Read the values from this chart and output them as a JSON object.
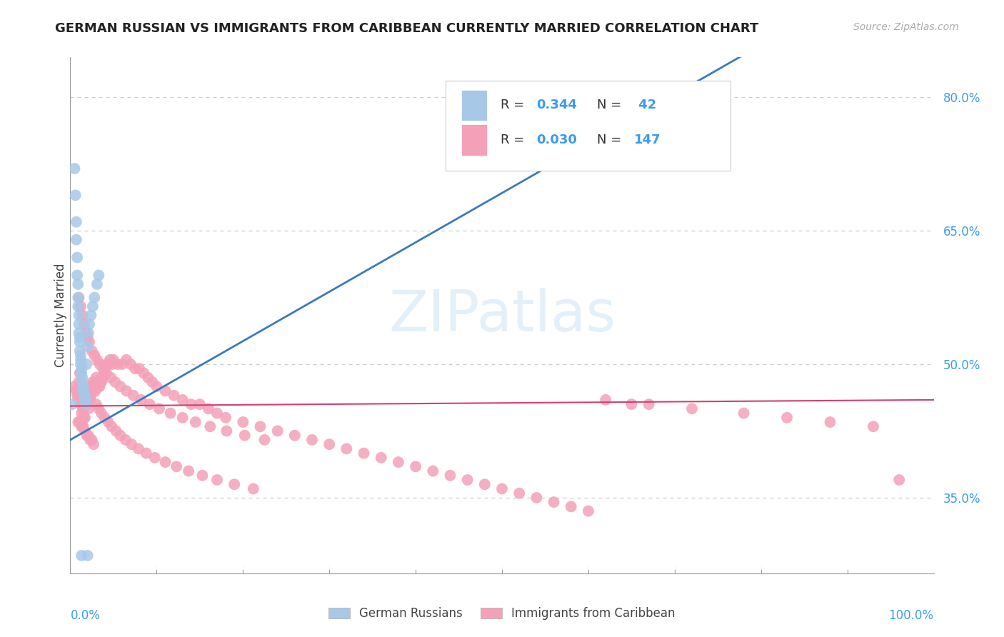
{
  "title": "GERMAN RUSSIAN VS IMMIGRANTS FROM CARIBBEAN CURRENTLY MARRIED CORRELATION CHART",
  "source": "Source: ZipAtlas.com",
  "ylabel": "Currently Married",
  "legend_blue_R": "0.344",
  "legend_blue_N": "42",
  "legend_pink_R": "0.030",
  "legend_pink_N": "147",
  "blue_color": "#a8c8e8",
  "pink_color": "#f4a0b8",
  "blue_line_color": "#3a7abf",
  "pink_line_color": "#d44070",
  "grid_color": "#cccccc",
  "ytick_values": [
    0.35,
    0.5,
    0.65,
    0.8
  ],
  "ytick_labels": [
    "35.0%",
    "50.0%",
    "65.0%",
    "80.0%"
  ],
  "ymin": 0.265,
  "ymax": 0.845,
  "xmin": 0.0,
  "xmax": 1.0,
  "blue_line_x": [
    0.0,
    1.0
  ],
  "blue_line_y": [
    0.415,
    0.97
  ],
  "pink_line_x": [
    0.0,
    1.0
  ],
  "pink_line_y": [
    0.453,
    0.46
  ],
  "blue_scatter_x": [
    0.005,
    0.006,
    0.007,
    0.007,
    0.008,
    0.008,
    0.009,
    0.009,
    0.009,
    0.01,
    0.01,
    0.01,
    0.011,
    0.011,
    0.011,
    0.012,
    0.012,
    0.012,
    0.013,
    0.013,
    0.014,
    0.014,
    0.015,
    0.015,
    0.016,
    0.016,
    0.017,
    0.017,
    0.018,
    0.018,
    0.019,
    0.02,
    0.021,
    0.022,
    0.024,
    0.026,
    0.028,
    0.031,
    0.033,
    0.002,
    0.013,
    0.02
  ],
  "blue_scatter_y": [
    0.72,
    0.69,
    0.66,
    0.64,
    0.62,
    0.6,
    0.59,
    0.575,
    0.565,
    0.555,
    0.545,
    0.535,
    0.53,
    0.525,
    0.515,
    0.51,
    0.505,
    0.5,
    0.495,
    0.49,
    0.485,
    0.48,
    0.475,
    0.47,
    0.47,
    0.465,
    0.465,
    0.46,
    0.46,
    0.455,
    0.5,
    0.52,
    0.535,
    0.545,
    0.555,
    0.565,
    0.575,
    0.59,
    0.6,
    0.455,
    0.285,
    0.285
  ],
  "pink_scatter_x": [
    0.005,
    0.007,
    0.008,
    0.009,
    0.01,
    0.011,
    0.012,
    0.013,
    0.014,
    0.015,
    0.015,
    0.016,
    0.017,
    0.018,
    0.019,
    0.02,
    0.021,
    0.022,
    0.023,
    0.024,
    0.025,
    0.026,
    0.027,
    0.028,
    0.029,
    0.03,
    0.031,
    0.032,
    0.033,
    0.034,
    0.035,
    0.036,
    0.037,
    0.038,
    0.039,
    0.04,
    0.042,
    0.044,
    0.046,
    0.048,
    0.05,
    0.055,
    0.06,
    0.065,
    0.07,
    0.075,
    0.08,
    0.085,
    0.09,
    0.095,
    0.1,
    0.11,
    0.12,
    0.13,
    0.14,
    0.15,
    0.16,
    0.17,
    0.18,
    0.2,
    0.22,
    0.24,
    0.26,
    0.28,
    0.3,
    0.32,
    0.34,
    0.36,
    0.38,
    0.4,
    0.42,
    0.44,
    0.46,
    0.48,
    0.5,
    0.52,
    0.54,
    0.56,
    0.58,
    0.6,
    0.009,
    0.011,
    0.013,
    0.015,
    0.017,
    0.019,
    0.021,
    0.023,
    0.025,
    0.027,
    0.03,
    0.033,
    0.036,
    0.04,
    0.044,
    0.048,
    0.053,
    0.058,
    0.064,
    0.071,
    0.079,
    0.088,
    0.098,
    0.11,
    0.123,
    0.137,
    0.153,
    0.17,
    0.19,
    0.212,
    0.01,
    0.012,
    0.014,
    0.016,
    0.018,
    0.02,
    0.022,
    0.025,
    0.028,
    0.031,
    0.034,
    0.038,
    0.042,
    0.047,
    0.052,
    0.058,
    0.065,
    0.073,
    0.082,
    0.092,
    0.103,
    0.116,
    0.13,
    0.145,
    0.162,
    0.181,
    0.202,
    0.225,
    0.67,
    0.72,
    0.78,
    0.83,
    0.88,
    0.93,
    0.62,
    0.65,
    0.96
  ],
  "pink_scatter_y": [
    0.475,
    0.47,
    0.465,
    0.46,
    0.48,
    0.49,
    0.455,
    0.445,
    0.43,
    0.45,
    0.475,
    0.44,
    0.44,
    0.46,
    0.455,
    0.46,
    0.45,
    0.47,
    0.46,
    0.465,
    0.475,
    0.48,
    0.47,
    0.475,
    0.47,
    0.485,
    0.475,
    0.48,
    0.475,
    0.475,
    0.48,
    0.48,
    0.485,
    0.485,
    0.49,
    0.495,
    0.5,
    0.5,
    0.505,
    0.5,
    0.505,
    0.5,
    0.5,
    0.505,
    0.5,
    0.495,
    0.495,
    0.49,
    0.485,
    0.48,
    0.475,
    0.47,
    0.465,
    0.46,
    0.455,
    0.455,
    0.45,
    0.445,
    0.44,
    0.435,
    0.43,
    0.425,
    0.42,
    0.415,
    0.41,
    0.405,
    0.4,
    0.395,
    0.39,
    0.385,
    0.38,
    0.375,
    0.37,
    0.365,
    0.36,
    0.355,
    0.35,
    0.345,
    0.34,
    0.335,
    0.435,
    0.435,
    0.43,
    0.43,
    0.425,
    0.42,
    0.42,
    0.415,
    0.415,
    0.41,
    0.455,
    0.45,
    0.445,
    0.44,
    0.435,
    0.43,
    0.425,
    0.42,
    0.415,
    0.41,
    0.405,
    0.4,
    0.395,
    0.39,
    0.385,
    0.38,
    0.375,
    0.37,
    0.365,
    0.36,
    0.575,
    0.565,
    0.555,
    0.545,
    0.535,
    0.53,
    0.525,
    0.515,
    0.51,
    0.505,
    0.5,
    0.495,
    0.49,
    0.485,
    0.48,
    0.475,
    0.47,
    0.465,
    0.46,
    0.455,
    0.45,
    0.445,
    0.44,
    0.435,
    0.43,
    0.425,
    0.42,
    0.415,
    0.455,
    0.45,
    0.445,
    0.44,
    0.435,
    0.43,
    0.46,
    0.455,
    0.37
  ]
}
